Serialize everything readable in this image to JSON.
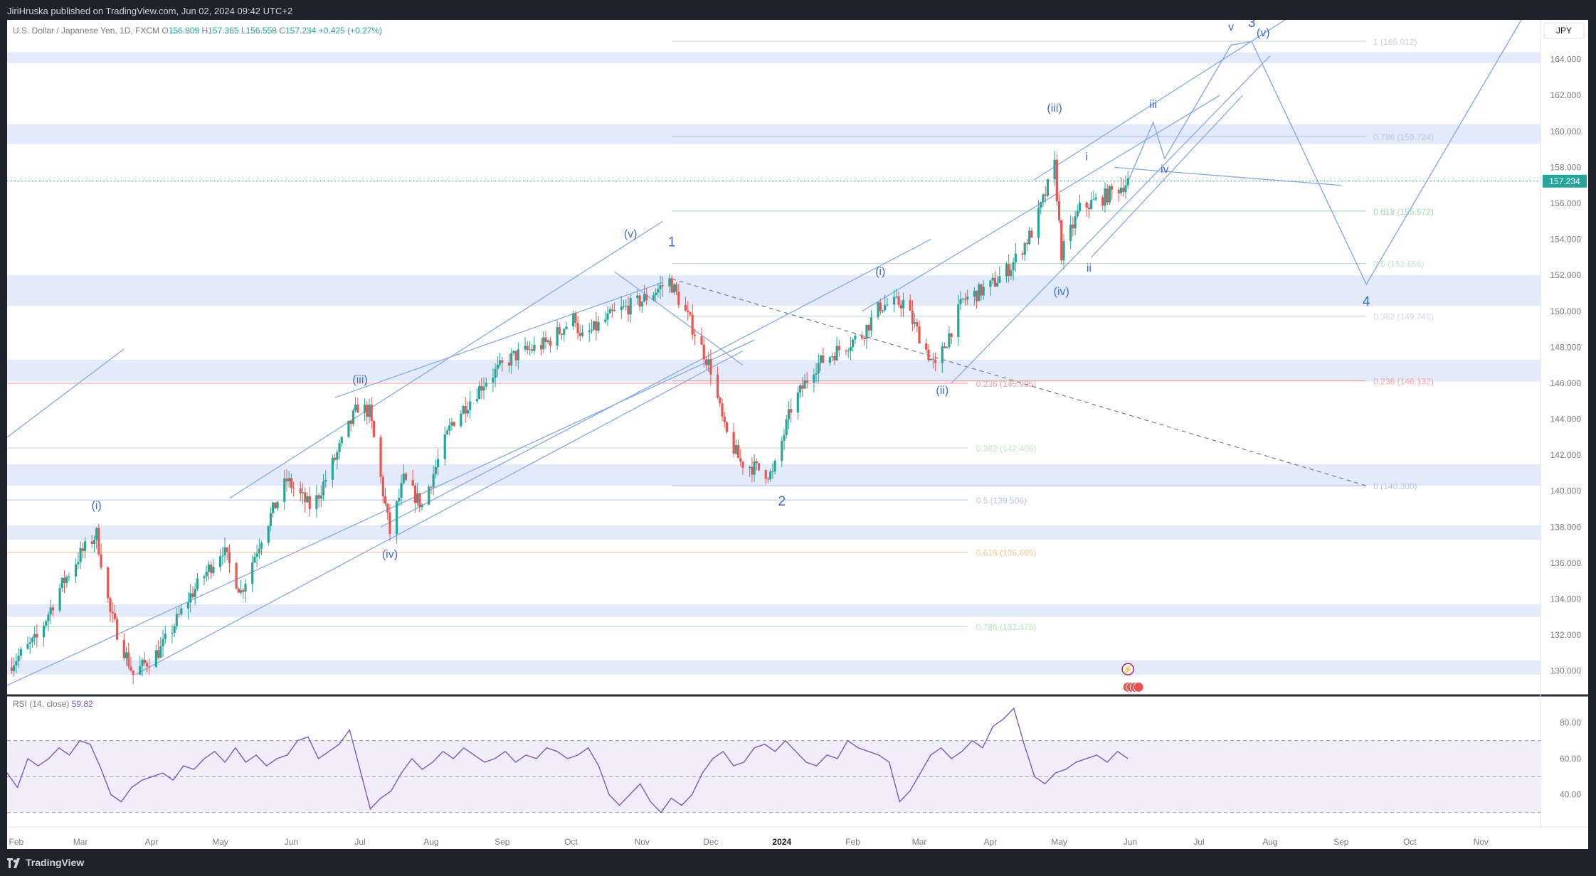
{
  "header": {
    "published": "JiriHruska published on TradingView.com, Jun 02, 2024 09:42 UTC+2"
  },
  "footer": {
    "brand": "TradingView"
  },
  "chart_data": {
    "type": "candlestick",
    "symbol": "U.S. Dollar / Japanese Yen, 1D, FXCM",
    "ohlc": {
      "o_label": "O",
      "o": "156.809",
      "h_label": "H",
      "h": "157.365",
      "l_label": "L",
      "l": "156.558",
      "c_label": "C",
      "c": "157.234",
      "change": "+0.425 (+0.27%)"
    },
    "currency": "JPY",
    "last_price": 157.234,
    "last_price_label": "157.234",
    "y_axis": {
      "min": 128.8,
      "max": 166.2,
      "ticks": [
        "130.000",
        "132.000",
        "134.000",
        "136.000",
        "138.000",
        "140.000",
        "142.000",
        "144.000",
        "146.000",
        "148.000",
        "150.000",
        "152.000",
        "154.000",
        "156.000",
        "158.000",
        "160.000",
        "162.000",
        "164.000"
      ]
    },
    "x_axis": {
      "start": "2023-01-28",
      "end": "2024-11-27",
      "ticks": [
        {
          "date": "2023-02-01",
          "label": "Feb"
        },
        {
          "date": "2023-03-01",
          "label": "Mar"
        },
        {
          "date": "2023-04-01",
          "label": "Apr"
        },
        {
          "date": "2023-05-01",
          "label": "May"
        },
        {
          "date": "2023-06-01",
          "label": "Jun"
        },
        {
          "date": "2023-07-01",
          "label": "Jul"
        },
        {
          "date": "2023-08-01",
          "label": "Aug"
        },
        {
          "date": "2023-09-01",
          "label": "Sep"
        },
        {
          "date": "2023-10-01",
          "label": "Oct"
        },
        {
          "date": "2023-11-01",
          "label": "Nov"
        },
        {
          "date": "2023-12-01",
          "label": "Dec"
        },
        {
          "date": "2024-01-01",
          "label": "2024",
          "bold": true
        },
        {
          "date": "2024-02-01",
          "label": "Feb"
        },
        {
          "date": "2024-03-01",
          "label": "Mar"
        },
        {
          "date": "2024-04-01",
          "label": "Apr"
        },
        {
          "date": "2024-05-01",
          "label": "May"
        },
        {
          "date": "2024-06-01",
          "label": "Jun"
        },
        {
          "date": "2024-07-01",
          "label": "Jul"
        },
        {
          "date": "2024-08-01",
          "label": "Aug"
        },
        {
          "date": "2024-09-01",
          "label": "Sep"
        },
        {
          "date": "2024-10-01",
          "label": "Oct"
        },
        {
          "date": "2024-11-01",
          "label": "Nov"
        }
      ]
    },
    "price_path": [
      [
        "2023-01-28",
        130.2
      ],
      [
        "2023-02-10",
        131.8
      ],
      [
        "2023-02-20",
        134.6
      ],
      [
        "2023-03-01",
        136.5
      ],
      [
        "2023-03-08",
        137.6
      ],
      [
        "2023-03-14",
        133.2
      ],
      [
        "2023-03-24",
        129.8
      ],
      [
        "2023-04-05",
        131.2
      ],
      [
        "2023-04-18",
        134.2
      ],
      [
        "2023-05-02",
        136.8
      ],
      [
        "2023-05-10",
        134.4
      ],
      [
        "2023-05-20",
        137.8
      ],
      [
        "2023-05-30",
        140.6
      ],
      [
        "2023-06-10",
        139.0
      ],
      [
        "2023-06-20",
        141.8
      ],
      [
        "2023-06-30",
        144.7
      ],
      [
        "2023-07-05",
        144.4
      ],
      [
        "2023-07-14",
        137.7
      ],
      [
        "2023-07-20",
        140.6
      ],
      [
        "2023-07-28",
        139.2
      ],
      [
        "2023-08-10",
        143.8
      ],
      [
        "2023-08-25",
        146.2
      ],
      [
        "2023-09-06",
        147.5
      ],
      [
        "2023-09-20",
        148.2
      ],
      [
        "2023-10-03",
        149.7
      ],
      [
        "2023-10-05",
        148.4
      ],
      [
        "2023-10-20",
        149.9
      ],
      [
        "2023-11-01",
        150.6
      ],
      [
        "2023-11-13",
        151.7
      ],
      [
        "2023-11-22",
        149.4
      ],
      [
        "2023-12-01",
        146.8
      ],
      [
        "2023-12-07",
        143.4
      ],
      [
        "2023-12-14",
        141.6
      ],
      [
        "2023-12-28",
        140.9
      ],
      [
        "2024-01-05",
        144.6
      ],
      [
        "2024-01-15",
        146.9
      ],
      [
        "2024-01-25",
        147.8
      ],
      [
        "2024-02-05",
        148.7
      ],
      [
        "2024-02-13",
        150.3
      ],
      [
        "2024-02-23",
        150.5
      ],
      [
        "2024-03-08",
        146.8
      ],
      [
        "2024-03-20",
        150.6
      ],
      [
        "2024-04-01",
        151.4
      ],
      [
        "2024-04-10",
        152.5
      ],
      [
        "2024-04-20",
        154.6
      ],
      [
        "2024-04-29",
        158.1
      ],
      [
        "2024-05-02",
        153.2
      ],
      [
        "2024-05-10",
        155.7
      ],
      [
        "2024-05-20",
        156.3
      ],
      [
        "2024-05-31",
        157.2
      ]
    ],
    "fib_left": [
      {
        "label": "0.236 (145.995)",
        "value": 145.995,
        "color": "#f4a3a3"
      },
      {
        "label": "0.382 (142.406)",
        "value": 142.406,
        "color": "#c5e3c9"
      },
      {
        "label": "0.5 (139.506)",
        "value": 139.506,
        "color": "#b5c7ec"
      },
      {
        "label": "0.618 (136.605)",
        "value": 136.605,
        "color": "#f7c79b"
      },
      {
        "label": "0.786 (132.475)",
        "value": 132.475,
        "color": "#b9e1bd"
      }
    ],
    "fib_right": [
      {
        "label": "1 (165.012)",
        "value": 165.012,
        "color": "#c9d2e6"
      },
      {
        "label": "0.786 (159.724)",
        "value": 159.724,
        "color": "#b5c7ec"
      },
      {
        "label": "0.618 (155.572)",
        "value": 155.572,
        "color": "#a6d9b0"
      },
      {
        "label": "0.5 (152.656)",
        "value": 152.656,
        "color": "#c5e3c9"
      },
      {
        "label": "0.382 (149.740)",
        "value": 149.74,
        "color": "#cfd9f0"
      },
      {
        "label": "0.236 (146.132)",
        "value": 146.132,
        "color": "#f4a3a3"
      },
      {
        "label": "0 (140.300)",
        "value": 140.3,
        "color": "#b5c7ec"
      }
    ],
    "zones": [
      [
        163.8,
        164.4
      ],
      [
        159.3,
        160.4
      ],
      [
        150.3,
        152.0
      ],
      [
        146.1,
        147.3
      ],
      [
        140.3,
        141.5
      ],
      [
        137.3,
        138.1
      ],
      [
        133.0,
        133.7
      ],
      [
        129.8,
        130.6
      ]
    ],
    "wave_labels": [
      {
        "text": "1",
        "date": "2023-11-14",
        "price": 153.6
      },
      {
        "text": "2",
        "date": "2024-01-01",
        "price": 139.2
      },
      {
        "text": "3",
        "date": "2024-07-24",
        "price": 165.8
      },
      {
        "text": "4",
        "date": "2024-09-12",
        "price": 150.3
      },
      {
        "text": "v",
        "date": "2024-07-15",
        "price": 165.6
      },
      {
        "text": "(i)",
        "date": "2023-03-08",
        "price": 139.0
      },
      {
        "text": "(iii)",
        "date": "2023-07-01",
        "price": 146.0
      },
      {
        "text": "(iv)",
        "date": "2023-07-14",
        "price": 136.3
      },
      {
        "text": "(v)",
        "date": "2023-10-27",
        "price": 154.1
      },
      {
        "text": "(i)",
        "date": "2024-02-13",
        "price": 152.0
      },
      {
        "text": "(ii)",
        "date": "2024-03-11",
        "price": 145.4
      },
      {
        "text": "(iii)",
        "date": "2024-04-29",
        "price": 161.1
      },
      {
        "text": "(iv)",
        "date": "2024-05-02",
        "price": 150.9
      },
      {
        "text": "(v)",
        "date": "2024-07-29",
        "price": 165.3
      },
      {
        "text": "i",
        "date": "2024-05-13",
        "price": 158.4
      },
      {
        "text": "ii",
        "date": "2024-05-14",
        "price": 152.2
      },
      {
        "text": "iii",
        "date": "2024-06-11",
        "price": 161.3
      },
      {
        "text": "iv",
        "date": "2024-06-16",
        "price": 157.7
      }
    ],
    "rsi": {
      "label": "RSI (14, close)",
      "value": 59.82,
      "value_label": "59.82",
      "range": [
        22,
        92
      ],
      "ticks": [
        "80.00",
        "60.00",
        "40.00"
      ],
      "band": [
        30,
        70
      ],
      "values": [
        52,
        44,
        60,
        56,
        60,
        66,
        62,
        70,
        68,
        55,
        40,
        36,
        44,
        48,
        50,
        52,
        48,
        56,
        54,
        60,
        64,
        58,
        66,
        58,
        62,
        56,
        60,
        62,
        70,
        72,
        60,
        64,
        68,
        76,
        54,
        32,
        38,
        42,
        52,
        60,
        54,
        58,
        64,
        60,
        66,
        62,
        58,
        60,
        64,
        58,
        62,
        60,
        66,
        64,
        60,
        62,
        66,
        56,
        40,
        34,
        40,
        46,
        36,
        30,
        38,
        34,
        40,
        52,
        60,
        64,
        56,
        58,
        66,
        68,
        64,
        70,
        64,
        58,
        56,
        62,
        60,
        70,
        66,
        64,
        62,
        58,
        36,
        42,
        52,
        62,
        66,
        60,
        64,
        70,
        66,
        78,
        82,
        88,
        68,
        50,
        46,
        52,
        54,
        58,
        60,
        62,
        58,
        64,
        60
      ]
    }
  }
}
